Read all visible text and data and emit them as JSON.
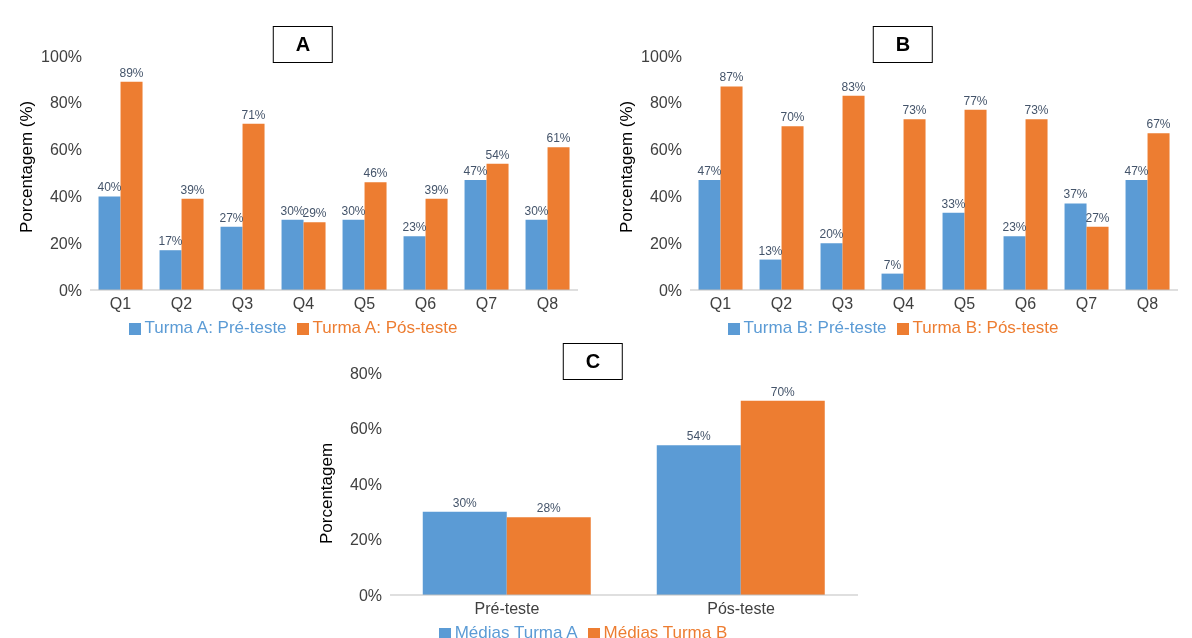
{
  "chart_data": [
    {
      "type": "bar",
      "title": "A",
      "ylabel": "Porcentagem (%)",
      "categories": [
        "Q1",
        "Q2",
        "Q3",
        "Q4",
        "Q5",
        "Q6",
        "Q7",
        "Q8"
      ],
      "ylim": [
        0,
        100
      ],
      "yticks": [
        {
          "value": 0,
          "label": "0%"
        },
        {
          "value": 20,
          "label": "20%"
        },
        {
          "value": 40,
          "label": "40%"
        },
        {
          "value": 60,
          "label": "60%"
        },
        {
          "value": 80,
          "label": "80%"
        },
        {
          "value": 100,
          "label": "100%"
        }
      ],
      "grid": false,
      "legend": "bottom",
      "series": [
        {
          "name": "Turma A: Pré-teste",
          "color": "#5b9bd5",
          "values": [
            40,
            17,
            27,
            30,
            30,
            23,
            47,
            30
          ],
          "value_labels": [
            "40%",
            "17%",
            "27%",
            "30%",
            "30%",
            "23%",
            "47%",
            "30%"
          ]
        },
        {
          "name": "Turma A: Pós-teste",
          "color": "#ed7d31",
          "values": [
            89,
            39,
            71,
            29,
            46,
            39,
            54,
            61
          ],
          "value_labels": [
            "89%",
            "39%",
            "71%",
            "29%",
            "46%",
            "39%",
            "54%",
            "61%"
          ]
        }
      ]
    },
    {
      "type": "bar",
      "title": "B",
      "ylabel": "Porcentagem (%)",
      "categories": [
        "Q1",
        "Q2",
        "Q3",
        "Q4",
        "Q5",
        "Q6",
        "Q7",
        "Q8"
      ],
      "ylim": [
        0,
        100
      ],
      "yticks": [
        {
          "value": 0,
          "label": "0%"
        },
        {
          "value": 20,
          "label": "20%"
        },
        {
          "value": 40,
          "label": "40%"
        },
        {
          "value": 60,
          "label": "60%"
        },
        {
          "value": 80,
          "label": "80%"
        },
        {
          "value": 100,
          "label": "100%"
        }
      ],
      "grid": false,
      "legend": "bottom",
      "series": [
        {
          "name": "Turma B: Pré-teste",
          "color": "#5b9bd5",
          "values": [
            47,
            13,
            20,
            7,
            33,
            23,
            37,
            47
          ],
          "value_labels": [
            "47%",
            "13%",
            "20%",
            "7%",
            "33%",
            "23%",
            "37%",
            "47%"
          ]
        },
        {
          "name": "Turma B: Pós-teste",
          "color": "#ed7d31",
          "values": [
            87,
            70,
            83,
            73,
            77,
            73,
            27,
            67
          ],
          "value_labels": [
            "87%",
            "70%",
            "83%",
            "73%",
            "77%",
            "73%",
            "27%",
            "67%"
          ]
        }
      ]
    },
    {
      "type": "bar",
      "title": "C",
      "ylabel": "Porcentagem",
      "categories": [
        "Pré-teste",
        "Pós-teste"
      ],
      "ylim": [
        0,
        80
      ],
      "yticks": [
        {
          "value": 0,
          "label": "0%"
        },
        {
          "value": 20,
          "label": "20%"
        },
        {
          "value": 40,
          "label": "40%"
        },
        {
          "value": 60,
          "label": "60%"
        },
        {
          "value": 80,
          "label": "80%"
        }
      ],
      "grid": false,
      "legend": "bottom",
      "series": [
        {
          "name": "Médias Turma A",
          "color": "#5b9bd5",
          "values": [
            30,
            54
          ],
          "value_labels": [
            "30%",
            "54%"
          ]
        },
        {
          "name": "Médias Turma B",
          "color": "#ed7d31",
          "values": [
            28,
            70
          ],
          "value_labels": [
            "28%",
            "70%"
          ]
        }
      ]
    }
  ]
}
